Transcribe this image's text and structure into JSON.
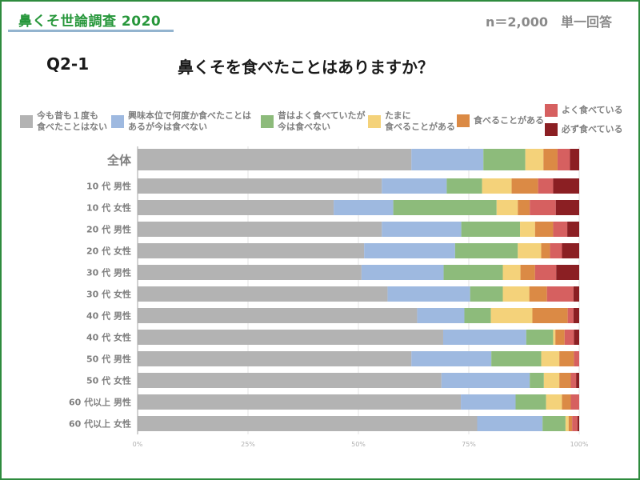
{
  "header": {
    "brand": "鼻くそ世論調査 2020",
    "sample_size": "n＝2,000",
    "answer_type": "単一回答"
  },
  "question": {
    "number": "Q2-1",
    "text": "鼻くそを食べたことはありますか？"
  },
  "chart_data": {
    "type": "bar",
    "orientation": "horizontal",
    "stacked": "percent",
    "title": "鼻くそを食べたことはありますか？",
    "xlabel": "",
    "ylabel": "",
    "xlim": [
      0,
      100
    ],
    "x_ticks": [
      "0%",
      "25%",
      "50%",
      "75%",
      "100%"
    ],
    "grid": true,
    "legend_position": "top",
    "categories": [
      "全体",
      "10 代 男性",
      "10 代 女性",
      "20 代 男性",
      "20 代 女性",
      "30 代 男性",
      "30 代 女性",
      "40 代 男性",
      "40 代 女性",
      "50 代 男性",
      "50 代 女性",
      "60 代以上 男性",
      "60 代以上 女性"
    ],
    "series": [
      {
        "name": "今も昔も１度も\n食べたことはない",
        "color": "#b3b3b3",
        "values": [
          62.0,
          55.3,
          44.4,
          55.3,
          51.3,
          50.7,
          56.6,
          63.3,
          69.2,
          62.0,
          68.8,
          73.2,
          76.9
        ]
      },
      {
        "name": "興味本位で何度か食べたことは\nあるが今は食べない",
        "color": "#9eb9e0",
        "values": [
          16.3,
          14.7,
          13.5,
          18.0,
          20.6,
          18.6,
          18.7,
          10.7,
          18.8,
          18.1,
          20.0,
          12.4,
          14.8
        ]
      },
      {
        "name": "昔はよく食べていたが\n今は食べない",
        "color": "#8dbb7b",
        "values": [
          9.5,
          8.0,
          23.4,
          13.3,
          14.2,
          13.4,
          7.4,
          6.0,
          6.1,
          11.3,
          3.2,
          6.9,
          5.2
        ]
      },
      {
        "name": "たまに\n食べることがある",
        "color": "#f4d27a",
        "values": [
          4.1,
          6.7,
          4.8,
          3.4,
          5.3,
          4.0,
          6.0,
          9.4,
          0.5,
          4.1,
          3.5,
          3.6,
          0.7
        ]
      },
      {
        "name": "食べることがある",
        "color": "#db8a45",
        "values": [
          3.2,
          6.0,
          2.7,
          4.1,
          2.0,
          3.3,
          4.0,
          8.0,
          2.1,
          3.3,
          2.6,
          2.0,
          0.8
        ]
      },
      {
        "name": "よく食べている",
        "color": "#d66060",
        "values": [
          2.8,
          3.4,
          5.9,
          3.2,
          2.7,
          4.8,
          6.0,
          1.3,
          2.1,
          1.2,
          1.2,
          1.9,
          1.2
        ]
      },
      {
        "name": "必ず食べている",
        "color": "#8b1f23",
        "values": [
          2.1,
          5.9,
          5.3,
          2.7,
          3.9,
          5.2,
          1.3,
          1.3,
          1.2,
          0.0,
          0.7,
          0.0,
          0.4
        ]
      }
    ]
  }
}
